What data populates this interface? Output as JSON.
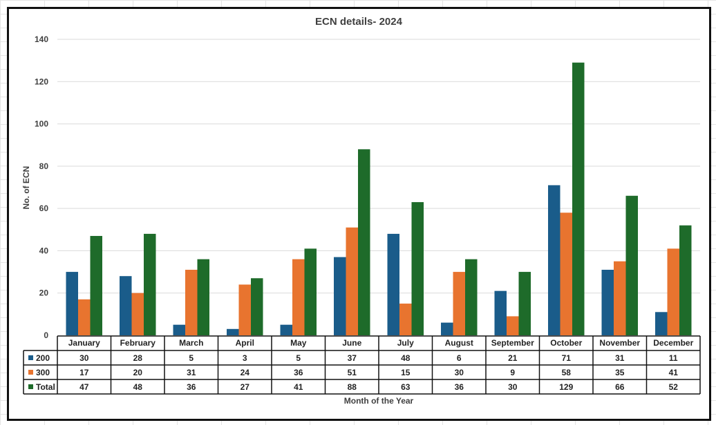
{
  "chart_data": {
    "type": "bar",
    "title": "ECN details- 2024",
    "xlabel": "Month of the Year",
    "ylabel": "No. of ECN",
    "ylim": [
      0,
      140
    ],
    "yticks": [
      0,
      20,
      40,
      60,
      80,
      100,
      120,
      140
    ],
    "grid": true,
    "legend": "data-table",
    "categories": [
      "January",
      "February",
      "March",
      "April",
      "May",
      "June",
      "July",
      "August",
      "September",
      "October",
      "November",
      "December"
    ],
    "series": [
      {
        "name": "200",
        "color": "#1a5c8a",
        "values": [
          30,
          28,
          5,
          3,
          5,
          37,
          48,
          6,
          21,
          71,
          31,
          11
        ]
      },
      {
        "name": "300",
        "color": "#e8742f",
        "values": [
          17,
          20,
          31,
          24,
          36,
          51,
          15,
          30,
          9,
          58,
          35,
          41
        ]
      },
      {
        "name": "Total",
        "color": "#1e6b2a",
        "values": [
          47,
          48,
          36,
          27,
          41,
          88,
          63,
          36,
          30,
          129,
          66,
          52
        ]
      }
    ]
  }
}
